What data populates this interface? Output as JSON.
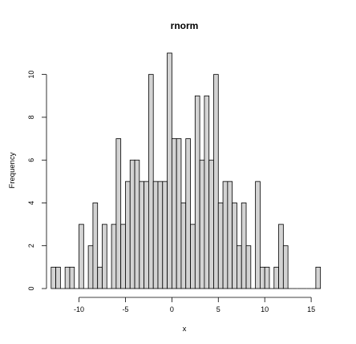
{
  "chart_data": {
    "type": "bar",
    "title": "rnorm",
    "xlabel": "x",
    "ylabel": "Frequency",
    "bin_width": 0.5,
    "bins_start": -13,
    "xlim": [
      -13.5,
      16.2
    ],
    "ylim": [
      0,
      11
    ],
    "x_ticks": [
      -10,
      -5,
      0,
      5,
      10,
      15
    ],
    "y_ticks": [
      0,
      2,
      4,
      6,
      8,
      10
    ],
    "counts": [
      1,
      1,
      0,
      1,
      1,
      0,
      3,
      0,
      2,
      4,
      1,
      3,
      0,
      3,
      7,
      3,
      5,
      6,
      6,
      5,
      5,
      10,
      5,
      5,
      5,
      11,
      7,
      7,
      4,
      7,
      3,
      9,
      6,
      9,
      6,
      10,
      4,
      5,
      5,
      4,
      2,
      4,
      2,
      0,
      5,
      1,
      1,
      0,
      1,
      3,
      2,
      0,
      0,
      0,
      0,
      0,
      0,
      1
    ],
    "bar_fill": "#d3d3d3",
    "bar_stroke": "#000000",
    "grid": false
  }
}
